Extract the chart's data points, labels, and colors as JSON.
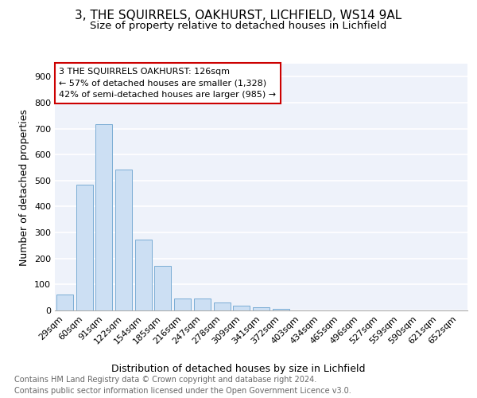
{
  "title_line1": "3, THE SQUIRRELS, OAKHURST, LICHFIELD, WS14 9AL",
  "title_line2": "Size of property relative to detached houses in Lichfield",
  "xlabel": "Distribution of detached houses by size in Lichfield",
  "ylabel": "Number of detached properties",
  "categories": [
    "29sqm",
    "60sqm",
    "91sqm",
    "122sqm",
    "154sqm",
    "185sqm",
    "216sqm",
    "247sqm",
    "278sqm",
    "309sqm",
    "341sqm",
    "372sqm",
    "403sqm",
    "434sqm",
    "465sqm",
    "496sqm",
    "527sqm",
    "559sqm",
    "590sqm",
    "621sqm",
    "652sqm"
  ],
  "values": [
    60,
    483,
    718,
    543,
    272,
    173,
    47,
    47,
    32,
    18,
    13,
    7,
    0,
    0,
    0,
    0,
    0,
    0,
    0,
    0,
    0
  ],
  "bar_color": "#ccdff3",
  "bar_edge_color": "#7aadd4",
  "annotation_text": "3 THE SQUIRRELS OAKHURST: 126sqm\n← 57% of detached houses are smaller (1,328)\n42% of semi-detached houses are larger (985) →",
  "annotation_box_facecolor": "#ffffff",
  "annotation_box_edgecolor": "#cc0000",
  "footer_text": "Contains HM Land Registry data © Crown copyright and database right 2024.\nContains public sector information licensed under the Open Government Licence v3.0.",
  "ylim": [
    0,
    950
  ],
  "yticks": [
    0,
    100,
    200,
    300,
    400,
    500,
    600,
    700,
    800,
    900
  ],
  "bg_color": "#eef2fa",
  "title_fontsize": 11,
  "subtitle_fontsize": 9.5,
  "ylabel_fontsize": 9,
  "xlabel_fontsize": 9,
  "tick_fontsize": 8,
  "footer_fontsize": 7,
  "annotation_fontsize": 8
}
